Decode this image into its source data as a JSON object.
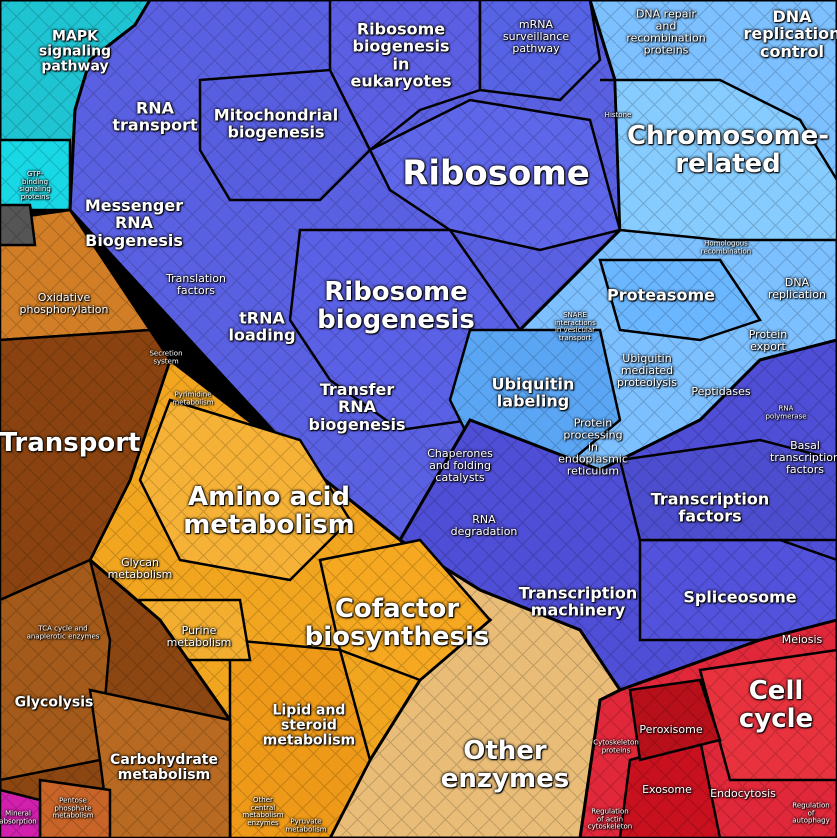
{
  "title": "",
  "colors": {
    "blue": "#5b63e6",
    "light_blue": "#7fc0ff",
    "cyan": "#22c8d6",
    "orange": "#f2a820",
    "brown": "#8a4510",
    "tan": "#e8be7a",
    "red": "#e0283a",
    "magenta": "#d020b0"
  },
  "labels": {
    "mapk": "MAPK\nsignaling\npathway",
    "gtp": "GTP-\nbinding\nsignaling\nproteins",
    "rna_transport": "RNA\ntransport",
    "mito": "Mitochondrial\nbiogenesis",
    "ribo_euk": "Ribosome\nbiogenesis\nin\neukaryotes",
    "mrna_surv": "mRNA\nsurveillance\npathway",
    "dna_repair": "DNA repair\nand\nrecombination\nproteins",
    "dna_rep_ctrl": "DNA\nreplication\ncontrol",
    "histone": "Histone",
    "chromosome": "Chromosome-\nrelated",
    "ribosome": "Ribosome",
    "messenger": "Messenger\nRNA\nBiogenesis",
    "translation": "Translation\nfactors",
    "trna": "tRNA\nloading",
    "ribo_bio": "Ribosome\nbiogenesis",
    "proteasome": "Proteasome",
    "dna_replication": "DNA\nreplication",
    "protein_export": "Protein\nexport",
    "homologous": "Homologous\nrecombination",
    "snare": "SNARE\ninteractions\nin vesicular\ntransport",
    "ubiq_med": "Ubiquitin\nmediated\nproteolysis",
    "peptidases": "Peptidases",
    "rna_pol": "RNA\npolymerase",
    "oxphos": "Oxidative\nphosphorylation",
    "transfer": "Transfer\nRNA\nbiogenesis",
    "ubiq_label": "Ubiquitin\nlabeling",
    "protein_proc": "Protein\nprocessing\nin\nendoplasmic\nreticulum",
    "chaperones": "Chaperones\nand folding\ncatalysts",
    "basal": "Basal\ntranscription\nfactors",
    "pyrimidine": "Pyrimidine\nmetabolism",
    "secretion": "Secretion\nsystem",
    "transport": "Transport",
    "amino": "Amino acid\nmetabolism",
    "rna_deg": "RNA\ndegradation",
    "transcription_factors": "Transcription\nfactors",
    "glycan": "Glycan\nmetabolism",
    "transcription_machinery": "Transcription\nmachinery",
    "spliceosome": "Spliceosome",
    "cofactor": "Cofactor\nbiosynthesis",
    "purine": "Purine\nmetabolism",
    "tca": "TCA cycle and\nanaplerotic enzymes",
    "meiosis": "Meiosis",
    "glycolysis": "Glycolysis",
    "lipid": "Lipid and\nsteroid\nmetabolism",
    "other_enz": "Other\nenzymes",
    "cell_cycle": "Cell\ncycle",
    "peroxisome": "Peroxisome",
    "carbo": "Carbohydrate\nmetabolism",
    "exosome": "Exosome",
    "endocytosis": "Endocytosis",
    "pentose": "Pentose\nphosphate\nmetabolism",
    "other_central": "Other\ncentral\nmetabolism\nenzymes",
    "cytoskeleton": "Cytoskeleton\nproteins",
    "reg_actin": "Regulation\nof actin\ncytoskeleton",
    "reg_auto": "Regulation\nof\nautophagy",
    "pyruvate": "Pyruvate\nmetabolism",
    "mineral": "Mineral\nabsorption"
  }
}
